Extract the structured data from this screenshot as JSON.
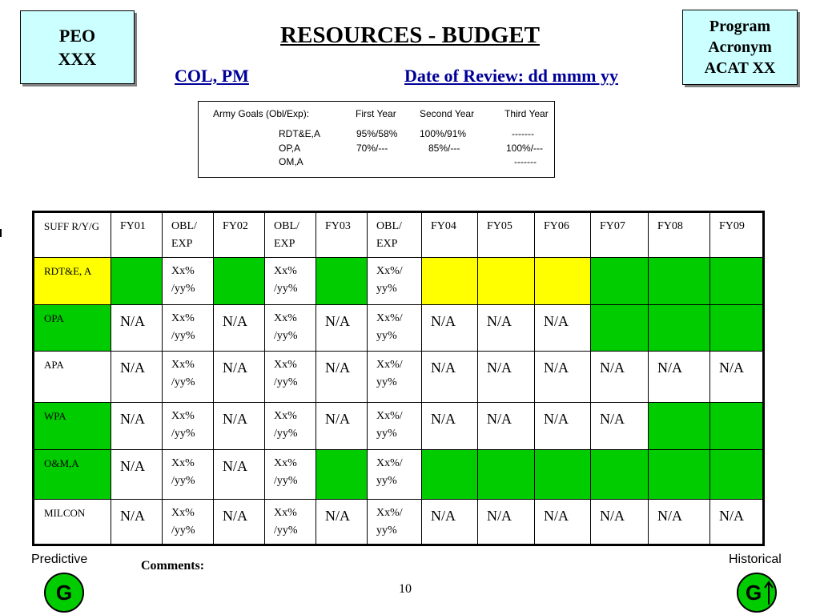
{
  "header": {
    "peo_line1": "PEO",
    "peo_line2": "XXX",
    "title": "RESOURCES - BUDGET",
    "program_line1": "Program",
    "program_line2": "Acronym",
    "program_line3": "ACAT XX",
    "col_pm": "COL, PM",
    "date_of_review": "Date of Review: dd mmm yy"
  },
  "goals": {
    "label": "Army Goals (Obl/Exp):",
    "headers": [
      "First Year",
      "Second Year",
      "Third Year"
    ],
    "rows": [
      {
        "name": "RDT&E,A",
        "values": [
          "95%/58%",
          "100%/91%",
          "-------"
        ]
      },
      {
        "name": "OP,A",
        "values": [
          "70%/---",
          "85%/---",
          "100%/---"
        ]
      },
      {
        "name": "OM,A",
        "values": [
          "",
          "",
          "-------"
        ]
      }
    ]
  },
  "table": {
    "headers": [
      "SUFF R/Y/G",
      "FY01",
      "OBL/ EXP",
      "FY02",
      "OBL/ EXP",
      "FY03",
      "OBL/ EXP",
      "FY04",
      "FY05",
      "FY06",
      "FY07",
      "FY08",
      "FY09"
    ],
    "rows": [
      {
        "label": "RDT&E, A",
        "label_color": "yellow",
        "cells": [
          {
            "text": "",
            "color": "green"
          },
          {
            "text": "Xx% /yy%",
            "color": "white"
          },
          {
            "text": "",
            "color": "green"
          },
          {
            "text": "Xx% /yy%",
            "color": "white"
          },
          {
            "text": "",
            "color": "green"
          },
          {
            "text": "Xx%/ yy%",
            "color": "white"
          },
          {
            "text": "",
            "color": "yellow"
          },
          {
            "text": "",
            "color": "yellow"
          },
          {
            "text": "",
            "color": "yellow"
          },
          {
            "text": "",
            "color": "green"
          },
          {
            "text": "",
            "color": "green"
          },
          {
            "text": "",
            "color": "green"
          }
        ]
      },
      {
        "label": "OPA",
        "label_color": "green",
        "cells": [
          {
            "text": "N/A",
            "color": "white"
          },
          {
            "text": "Xx% /yy%",
            "color": "white"
          },
          {
            "text": "N/A",
            "color": "white"
          },
          {
            "text": "Xx% /yy%",
            "color": "white"
          },
          {
            "text": "N/A",
            "color": "white"
          },
          {
            "text": "Xx%/ yy%",
            "color": "white"
          },
          {
            "text": "N/A",
            "color": "white"
          },
          {
            "text": "N/A",
            "color": "white"
          },
          {
            "text": "N/A",
            "color": "white"
          },
          {
            "text": "",
            "color": "green"
          },
          {
            "text": "",
            "color": "green"
          },
          {
            "text": "",
            "color": "green"
          }
        ]
      },
      {
        "label": "APA",
        "label_color": "white",
        "cells": [
          {
            "text": "N/A",
            "color": "white"
          },
          {
            "text": "Xx% /yy%",
            "color": "white"
          },
          {
            "text": "N/A",
            "color": "white"
          },
          {
            "text": "Xx% /yy%",
            "color": "white"
          },
          {
            "text": "N/A",
            "color": "white"
          },
          {
            "text": "Xx%/ yy%",
            "color": "white"
          },
          {
            "text": "N/A",
            "color": "white"
          },
          {
            "text": "N/A",
            "color": "white"
          },
          {
            "text": "N/A",
            "color": "white"
          },
          {
            "text": "N/A",
            "color": "white"
          },
          {
            "text": "N/A",
            "color": "white"
          },
          {
            "text": "N/A",
            "color": "white"
          }
        ]
      },
      {
        "label": "WPA",
        "label_color": "green",
        "cells": [
          {
            "text": "N/A",
            "color": "white"
          },
          {
            "text": "Xx% /yy%",
            "color": "white"
          },
          {
            "text": "N/A",
            "color": "white"
          },
          {
            "text": "Xx% /yy%",
            "color": "white"
          },
          {
            "text": "N/A",
            "color": "white"
          },
          {
            "text": "Xx%/ yy%",
            "color": "white"
          },
          {
            "text": "N/A",
            "color": "white"
          },
          {
            "text": "N/A",
            "color": "white"
          },
          {
            "text": "N/A",
            "color": "white"
          },
          {
            "text": "N/A",
            "color": "white"
          },
          {
            "text": "",
            "color": "green"
          },
          {
            "text": "",
            "color": "green"
          }
        ]
      },
      {
        "label": "O&M,A",
        "label_color": "green",
        "cells": [
          {
            "text": "N/A",
            "color": "white"
          },
          {
            "text": "Xx% /yy%",
            "color": "white"
          },
          {
            "text": "N/A",
            "color": "white"
          },
          {
            "text": "Xx% /yy%",
            "color": "white"
          },
          {
            "text": "",
            "color": "green"
          },
          {
            "text": "Xx%/ yy%",
            "color": "white"
          },
          {
            "text": "",
            "color": "green"
          },
          {
            "text": "",
            "color": "green"
          },
          {
            "text": "",
            "color": "green"
          },
          {
            "text": "",
            "color": "green"
          },
          {
            "text": "",
            "color": "green"
          },
          {
            "text": "",
            "color": "green"
          }
        ]
      },
      {
        "label": "MILCON",
        "label_color": "white",
        "cells": [
          {
            "text": "N/A",
            "color": "white"
          },
          {
            "text": "Xx% /yy%",
            "color": "white"
          },
          {
            "text": "N/A",
            "color": "white"
          },
          {
            "text": "Xx% /yy%",
            "color": "white"
          },
          {
            "text": "N/A",
            "color": "white"
          },
          {
            "text": "Xx%/ yy%",
            "color": "white"
          },
          {
            "text": "N/A",
            "color": "white"
          },
          {
            "text": "N/A",
            "color": "white"
          },
          {
            "text": "N/A",
            "color": "white"
          },
          {
            "text": "N/A",
            "color": "white"
          },
          {
            "text": "N/A",
            "color": "white"
          },
          {
            "text": "N/A",
            "color": "white"
          }
        ]
      }
    ]
  },
  "footer": {
    "predictive_label": "Predictive",
    "predictive_rating": "G",
    "historical_label": "Historical",
    "historical_rating": "G",
    "comments_label": "Comments:",
    "page_number": "10"
  },
  "colors": {
    "green": "#00cc00",
    "yellow": "#ffff00",
    "white": "#ffffff",
    "box_fill": "#ccffff",
    "link_blue": "#000099"
  },
  "icons": {
    "historical_trend": "up-arrow-icon"
  }
}
